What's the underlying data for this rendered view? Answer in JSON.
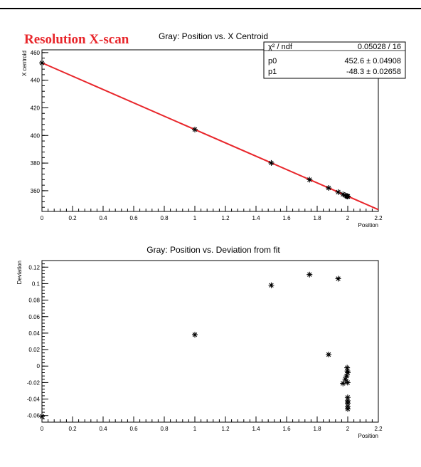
{
  "page": {
    "banner": "Resolution X-scan",
    "banner_color": "#e8262b"
  },
  "chart_data": [
    {
      "type": "scatter",
      "title": "Gray: Position vs. X Centroid",
      "xlabel": "Position",
      "ylabel": "X centroid",
      "xlim": [
        0,
        2.2
      ],
      "ylim": [
        345,
        462
      ],
      "xticks": [
        0,
        0.2,
        0.4,
        0.6,
        0.8,
        1,
        1.2,
        1.4,
        1.6,
        1.8,
        2,
        2.2
      ],
      "xtick_labels": [
        "0",
        "0.2",
        "0.4",
        "0.6",
        "0.8",
        "1",
        "1.2",
        "1.4",
        "1.6",
        "1.8",
        "2",
        "2.2"
      ],
      "yticks": [
        360,
        380,
        400,
        420,
        440,
        460
      ],
      "ytick_labels": [
        "360",
        "380",
        "400",
        "420",
        "440",
        "460"
      ],
      "marker": "*",
      "series": [
        {
          "x": [
            0,
            1,
            1.5,
            1.75,
            1.875,
            1.9375,
            1.96875,
            1.984375,
            1.9921875,
            1.99609375,
            1.998046875,
            1.9990234375,
            1.99951171875,
            1.999755859375,
            1.9998779296875,
            1.99993896484375,
            1.999969482421875,
            1.9999847412109375
          ],
          "y": [
            452.5,
            404.3,
            380.1,
            368.0,
            362.0,
            359.0,
            357.4,
            356.6,
            356.2,
            356.0,
            355.9,
            355.9,
            355.9,
            355.8,
            355.8,
            355.8,
            355.8,
            355.8
          ]
        }
      ],
      "fit": {
        "color": "#e8262b",
        "line_x": [
          0,
          2.2
        ],
        "line_y": [
          452.6,
          346.34
        ],
        "stats": [
          {
            "label": "χ² / ndf",
            "value": "0.05028 / 16"
          },
          {
            "label": "p0",
            "value": "452.6 ± 0.04908"
          },
          {
            "label": "p1",
            "value": "-48.3 ± 0.02658"
          }
        ]
      },
      "grid": false,
      "legend": "stats box top-right"
    },
    {
      "type": "scatter",
      "title": "Gray: Position vs. Deviation from fit",
      "xlabel": "Position",
      "ylabel": "Deviation",
      "xlim": [
        0,
        2.2
      ],
      "ylim": [
        -0.068,
        0.128
      ],
      "xticks": [
        0,
        0.2,
        0.4,
        0.6,
        0.8,
        1,
        1.2,
        1.4,
        1.6,
        1.8,
        2,
        2.2
      ],
      "xtick_labels": [
        "0",
        "0.2",
        "0.4",
        "0.6",
        "0.8",
        "1",
        "1.2",
        "1.4",
        "1.6",
        "1.8",
        "2",
        "2.2"
      ],
      "yticks": [
        -0.06,
        -0.04,
        -0.02,
        0,
        0.02,
        0.04,
        0.06,
        0.08,
        0.1,
        0.12
      ],
      "ytick_labels": [
        "-0.06",
        "-0.04",
        "-0.02",
        "0",
        "0.02",
        "0.04",
        "0.06",
        "0.08",
        "0.1",
        "0.12"
      ],
      "marker": "*",
      "series": [
        {
          "x": [
            0,
            1,
            1.5,
            1.75,
            1.875,
            1.9375,
            1.96875,
            1.984375,
            1.9921875,
            1.99609375,
            1.998046875,
            1.9990234375,
            1.99951171875,
            1.999755859375,
            1.9998779296875,
            1.99993896484375,
            1.999969482421875,
            1.9999847412109375
          ],
          "y": [
            -0.061,
            0.038,
            0.098,
            0.111,
            0.014,
            0.106,
            -0.021,
            -0.016,
            -0.012,
            -0.002,
            -0.006,
            -0.02,
            -0.038,
            -0.042,
            -0.049,
            -0.052,
            -0.045,
            -0.008
          ]
        }
      ],
      "grid": false,
      "legend": "none"
    }
  ]
}
